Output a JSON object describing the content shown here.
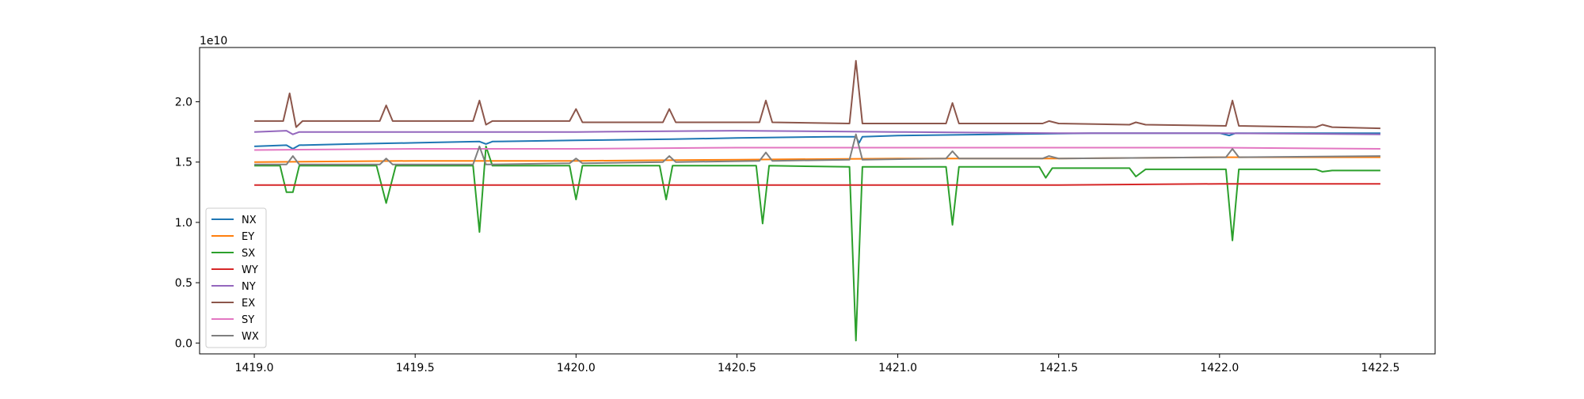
{
  "chart_data": {
    "type": "line",
    "title": "",
    "xlabel": "",
    "ylabel": "",
    "y_offset_text": "1e10",
    "xlim": [
      1418.83,
      1422.67
    ],
    "ylim": [
      -0.09,
      2.45
    ],
    "x_ticks": [
      1419.0,
      1419.5,
      1420.0,
      1420.5,
      1421.0,
      1421.5,
      1422.0,
      1422.5
    ],
    "x_tick_labels": [
      "1419.0",
      "1419.5",
      "1420.0",
      "1420.5",
      "1421.0",
      "1421.5",
      "1422.0",
      "1422.5"
    ],
    "y_ticks": [
      0.0,
      0.5,
      1.0,
      1.5,
      2.0
    ],
    "y_tick_labels": [
      "0.0",
      "0.5",
      "1.0",
      "1.5",
      "2.0"
    ],
    "grid": false,
    "legend_position": "lower-left",
    "series": [
      {
        "name": "NX",
        "color": "#1f77b4",
        "points": [
          [
            1419.0,
            1.63
          ],
          [
            1419.1,
            1.64
          ],
          [
            1419.12,
            1.61
          ],
          [
            1419.14,
            1.64
          ],
          [
            1419.3,
            1.65
          ],
          [
            1419.5,
            1.66
          ],
          [
            1419.7,
            1.67
          ],
          [
            1419.72,
            1.65
          ],
          [
            1419.74,
            1.67
          ],
          [
            1420.0,
            1.68
          ],
          [
            1420.3,
            1.69
          ],
          [
            1420.5,
            1.7
          ],
          [
            1420.8,
            1.71
          ],
          [
            1420.87,
            1.71
          ],
          [
            1420.88,
            1.66
          ],
          [
            1420.89,
            1.71
          ],
          [
            1421.0,
            1.72
          ],
          [
            1421.3,
            1.73
          ],
          [
            1421.6,
            1.74
          ],
          [
            1422.0,
            1.74
          ],
          [
            1422.03,
            1.72
          ],
          [
            1422.05,
            1.74
          ],
          [
            1422.3,
            1.74
          ],
          [
            1422.5,
            1.74
          ]
        ]
      },
      {
        "name": "EY",
        "color": "#ff7f0e",
        "points": [
          [
            1419.0,
            1.5
          ],
          [
            1419.5,
            1.51
          ],
          [
            1420.0,
            1.51
          ],
          [
            1420.5,
            1.52
          ],
          [
            1421.0,
            1.53
          ],
          [
            1421.5,
            1.53
          ],
          [
            1422.0,
            1.54
          ],
          [
            1422.5,
            1.54
          ]
        ]
      },
      {
        "name": "SX",
        "color": "#2ca02c",
        "points": [
          [
            1419.0,
            1.47
          ],
          [
            1419.08,
            1.47
          ],
          [
            1419.1,
            1.25
          ],
          [
            1419.12,
            1.25
          ],
          [
            1419.14,
            1.47
          ],
          [
            1419.38,
            1.47
          ],
          [
            1419.41,
            1.16
          ],
          [
            1419.44,
            1.47
          ],
          [
            1419.68,
            1.47
          ],
          [
            1419.7,
            0.92
          ],
          [
            1419.72,
            1.63
          ],
          [
            1419.74,
            1.47
          ],
          [
            1419.98,
            1.47
          ],
          [
            1420.0,
            1.19
          ],
          [
            1420.02,
            1.47
          ],
          [
            1420.26,
            1.47
          ],
          [
            1420.28,
            1.19
          ],
          [
            1420.3,
            1.47
          ],
          [
            1420.56,
            1.47
          ],
          [
            1420.58,
            0.99
          ],
          [
            1420.6,
            1.47
          ],
          [
            1420.85,
            1.46
          ],
          [
            1420.87,
            0.02
          ],
          [
            1420.89,
            1.46
          ],
          [
            1421.15,
            1.46
          ],
          [
            1421.17,
            0.98
          ],
          [
            1421.19,
            1.46
          ],
          [
            1421.44,
            1.46
          ],
          [
            1421.46,
            1.37
          ],
          [
            1421.48,
            1.45
          ],
          [
            1421.72,
            1.45
          ],
          [
            1421.74,
            1.38
          ],
          [
            1421.77,
            1.44
          ],
          [
            1422.02,
            1.44
          ],
          [
            1422.04,
            0.85
          ],
          [
            1422.06,
            1.44
          ],
          [
            1422.3,
            1.44
          ],
          [
            1422.32,
            1.42
          ],
          [
            1422.35,
            1.43
          ],
          [
            1422.5,
            1.43
          ]
        ]
      },
      {
        "name": "WY",
        "color": "#d62728",
        "points": [
          [
            1419.0,
            1.31
          ],
          [
            1419.5,
            1.31
          ],
          [
            1420.0,
            1.31
          ],
          [
            1420.5,
            1.31
          ],
          [
            1421.0,
            1.31
          ],
          [
            1421.5,
            1.31
          ],
          [
            1422.0,
            1.32
          ],
          [
            1422.5,
            1.32
          ]
        ]
      },
      {
        "name": "NY",
        "color": "#9467bd",
        "points": [
          [
            1419.0,
            1.75
          ],
          [
            1419.1,
            1.76
          ],
          [
            1419.12,
            1.73
          ],
          [
            1419.14,
            1.75
          ],
          [
            1419.5,
            1.75
          ],
          [
            1420.0,
            1.75
          ],
          [
            1420.5,
            1.76
          ],
          [
            1421.0,
            1.75
          ],
          [
            1421.5,
            1.74
          ],
          [
            1422.0,
            1.74
          ],
          [
            1422.5,
            1.73
          ]
        ]
      },
      {
        "name": "EX",
        "color": "#8c564b",
        "points": [
          [
            1419.0,
            1.84
          ],
          [
            1419.09,
            1.84
          ],
          [
            1419.11,
            2.07
          ],
          [
            1419.13,
            1.79
          ],
          [
            1419.15,
            1.84
          ],
          [
            1419.39,
            1.84
          ],
          [
            1419.41,
            1.97
          ],
          [
            1419.43,
            1.84
          ],
          [
            1419.68,
            1.84
          ],
          [
            1419.7,
            2.01
          ],
          [
            1419.72,
            1.81
          ],
          [
            1419.74,
            1.84
          ],
          [
            1419.98,
            1.84
          ],
          [
            1420.0,
            1.94
          ],
          [
            1420.02,
            1.83
          ],
          [
            1420.27,
            1.83
          ],
          [
            1420.29,
            1.94
          ],
          [
            1420.31,
            1.83
          ],
          [
            1420.57,
            1.83
          ],
          [
            1420.59,
            2.01
          ],
          [
            1420.61,
            1.83
          ],
          [
            1420.85,
            1.82
          ],
          [
            1420.87,
            2.34
          ],
          [
            1420.89,
            1.82
          ],
          [
            1421.15,
            1.82
          ],
          [
            1421.17,
            1.99
          ],
          [
            1421.19,
            1.82
          ],
          [
            1421.45,
            1.82
          ],
          [
            1421.47,
            1.84
          ],
          [
            1421.5,
            1.82
          ],
          [
            1421.72,
            1.81
          ],
          [
            1421.74,
            1.83
          ],
          [
            1421.77,
            1.81
          ],
          [
            1422.02,
            1.8
          ],
          [
            1422.04,
            2.01
          ],
          [
            1422.06,
            1.8
          ],
          [
            1422.3,
            1.79
          ],
          [
            1422.32,
            1.81
          ],
          [
            1422.35,
            1.79
          ],
          [
            1422.5,
            1.78
          ]
        ]
      },
      {
        "name": "SY",
        "color": "#e377c2",
        "points": [
          [
            1419.0,
            1.6
          ],
          [
            1419.5,
            1.61
          ],
          [
            1420.0,
            1.61
          ],
          [
            1420.5,
            1.62
          ],
          [
            1421.0,
            1.62
          ],
          [
            1421.5,
            1.62
          ],
          [
            1422.0,
            1.62
          ],
          [
            1422.5,
            1.61
          ]
        ]
      },
      {
        "name": "WX",
        "color": "#7f7f7f",
        "points": [
          [
            1419.0,
            1.48
          ],
          [
            1419.1,
            1.48
          ],
          [
            1419.12,
            1.55
          ],
          [
            1419.14,
            1.48
          ],
          [
            1419.39,
            1.48
          ],
          [
            1419.41,
            1.53
          ],
          [
            1419.43,
            1.48
          ],
          [
            1419.68,
            1.48
          ],
          [
            1419.7,
            1.63
          ],
          [
            1419.72,
            1.48
          ],
          [
            1419.98,
            1.49
          ],
          [
            1420.0,
            1.53
          ],
          [
            1420.02,
            1.49
          ],
          [
            1420.27,
            1.5
          ],
          [
            1420.29,
            1.55
          ],
          [
            1420.31,
            1.5
          ],
          [
            1420.57,
            1.51
          ],
          [
            1420.59,
            1.58
          ],
          [
            1420.61,
            1.51
          ],
          [
            1420.85,
            1.52
          ],
          [
            1420.87,
            1.73
          ],
          [
            1420.89,
            1.52
          ],
          [
            1421.15,
            1.53
          ],
          [
            1421.17,
            1.59
          ],
          [
            1421.19,
            1.53
          ],
          [
            1421.45,
            1.53
          ],
          [
            1421.47,
            1.55
          ],
          [
            1421.5,
            1.53
          ],
          [
            1422.02,
            1.54
          ],
          [
            1422.04,
            1.61
          ],
          [
            1422.06,
            1.54
          ],
          [
            1422.5,
            1.55
          ]
        ]
      }
    ]
  }
}
